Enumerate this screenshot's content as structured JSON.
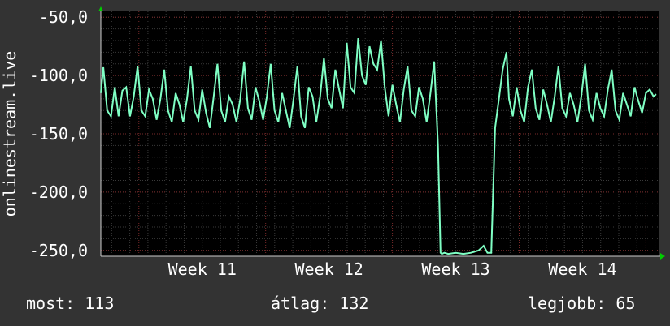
{
  "colors": {
    "background": "#333333",
    "plot_background": "#000000",
    "grid_minor": "#3a3a3a",
    "grid_major": "#7a2a2a",
    "line": "#7fffc4",
    "text": "#ffffff",
    "axis_arrow": "#00cc00"
  },
  "chart_data": {
    "type": "line",
    "ylabel": "onlinestream.live",
    "ylim": [
      -255,
      -45
    ],
    "yticks": [
      -50,
      -100,
      -150,
      -200,
      -250
    ],
    "ytick_labels": [
      "-50,0",
      "-100,0",
      "-150,0",
      "-200,0",
      "-250,0"
    ],
    "xlim": [
      10.2,
      14.6
    ],
    "xticks": [
      11,
      12,
      13,
      14
    ],
    "xtick_labels": [
      "Week 11",
      "Week 12",
      "Week 13",
      "Week 14"
    ],
    "grid": true,
    "series": [
      {
        "x": [
          10.2,
          10.22,
          10.25,
          10.28,
          10.31,
          10.34,
          10.37,
          10.4,
          10.43,
          10.46,
          10.49,
          10.52,
          10.55,
          10.58,
          10.61,
          10.64,
          10.67,
          10.7,
          10.73,
          10.76,
          10.79,
          10.82,
          10.85,
          10.88,
          10.91,
          10.94,
          10.97,
          11.0,
          11.03,
          11.06,
          11.09,
          11.12,
          11.15,
          11.18,
          11.21,
          11.24,
          11.27,
          11.3,
          11.33,
          11.36,
          11.39,
          11.42,
          11.45,
          11.48,
          11.51,
          11.54,
          11.57,
          11.6,
          11.63,
          11.66,
          11.69,
          11.72,
          11.75,
          11.78,
          11.81,
          11.84,
          11.87,
          11.9,
          11.93,
          11.96,
          11.99,
          12.02,
          12.05,
          12.08,
          12.11,
          12.14,
          12.17,
          12.2,
          12.23,
          12.26,
          12.29,
          12.32,
          12.35,
          12.38,
          12.41,
          12.44,
          12.47,
          12.5,
          12.53,
          12.56,
          12.59,
          12.62,
          12.65,
          12.68,
          12.71,
          12.74,
          12.77,
          12.8,
          12.83,
          12.86,
          12.88,
          12.89,
          12.91,
          12.94,
          13.0,
          13.06,
          13.12,
          13.18,
          13.22,
          13.25,
          13.28,
          13.31,
          13.34,
          13.37,
          13.4,
          13.42,
          13.45,
          13.48,
          13.51,
          13.54,
          13.57,
          13.6,
          13.63,
          13.66,
          13.69,
          13.72,
          13.75,
          13.78,
          13.81,
          13.84,
          13.87,
          13.9,
          13.93,
          13.96,
          13.99,
          14.02,
          14.05,
          14.08,
          14.11,
          14.14,
          14.17,
          14.2,
          14.23,
          14.26,
          14.29,
          14.32,
          14.35,
          14.38,
          14.41,
          14.44,
          14.47,
          14.5,
          14.53,
          14.56,
          14.58
        ],
        "y": [
          -115,
          -93,
          -130,
          -135,
          -110,
          -135,
          -113,
          -110,
          -135,
          -118,
          -92,
          -130,
          -135,
          -112,
          -120,
          -138,
          -120,
          -95,
          -130,
          -140,
          -115,
          -125,
          -140,
          -120,
          -92,
          -130,
          -138,
          -112,
          -132,
          -145,
          -118,
          -90,
          -130,
          -140,
          -118,
          -125,
          -140,
          -120,
          -88,
          -128,
          -138,
          -110,
          -122,
          -138,
          -118,
          -90,
          -130,
          -140,
          -115,
          -130,
          -145,
          -120,
          -92,
          -135,
          -145,
          -110,
          -118,
          -140,
          -118,
          -85,
          -120,
          -128,
          -95,
          -112,
          -128,
          -72,
          -110,
          -115,
          -68,
          -100,
          -108,
          -75,
          -90,
          -95,
          -70,
          -110,
          -135,
          -108,
          -125,
          -140,
          -112,
          -92,
          -130,
          -135,
          -110,
          -120,
          -140,
          -115,
          -88,
          -160,
          -252,
          -253,
          -252,
          -253,
          -252,
          -253,
          -252,
          -250,
          -246,
          -252,
          -252,
          -145,
          -120,
          -95,
          -80,
          -120,
          -135,
          -110,
          -130,
          -140,
          -110,
          -95,
          -128,
          -138,
          -112,
          -125,
          -140,
          -118,
          -92,
          -128,
          -135,
          -115,
          -125,
          -140,
          -118,
          -90,
          -130,
          -138,
          -115,
          -128,
          -135,
          -112,
          -95,
          -130,
          -138,
          -115,
          -125,
          -135,
          -110,
          -122,
          -132,
          -115,
          -112,
          -118,
          -116
        ]
      }
    ]
  },
  "stats": {
    "current_label": "most:",
    "current_value": "113",
    "average_label": "átlag:",
    "average_value": "132",
    "best_label": "legjobb:",
    "best_value": "65"
  }
}
